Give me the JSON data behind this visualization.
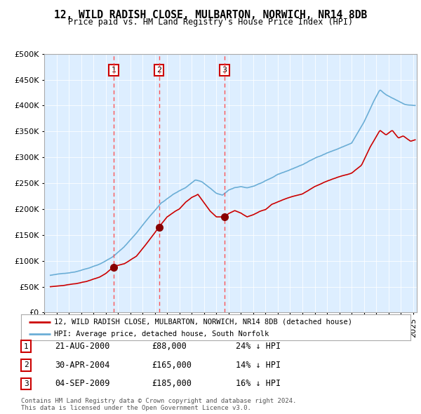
{
  "title": "12, WILD RADISH CLOSE, MULBARTON, NORWICH, NR14 8DB",
  "subtitle": "Price paid vs. HM Land Registry's House Price Index (HPI)",
  "legend_line1": "12, WILD RADISH CLOSE, MULBARTON, NORWICH, NR14 8DB (detached house)",
  "legend_line2": "HPI: Average price, detached house, South Norfolk",
  "footer1": "Contains HM Land Registry data © Crown copyright and database right 2024.",
  "footer2": "This data is licensed under the Open Government Licence v3.0.",
  "transactions": [
    {
      "num": 1,
      "date": "21-AUG-2000",
      "price": 88000,
      "note": "24% ↓ HPI"
    },
    {
      "num": 2,
      "date": "30-APR-2004",
      "price": 165000,
      "note": "14% ↓ HPI"
    },
    {
      "num": 3,
      "date": "04-SEP-2009",
      "price": 185000,
      "note": "16% ↓ HPI"
    }
  ],
  "transaction_dates_decimal": [
    2000.64,
    2004.33,
    2009.67
  ],
  "transaction_prices": [
    88000,
    165000,
    185000
  ],
  "hpi_color": "#6baed6",
  "price_color": "#cc0000",
  "dashed_line_color": "#ff4444",
  "background_color": "#ddeeff",
  "ylim": [
    0,
    500000
  ],
  "yticks": [
    0,
    50000,
    100000,
    150000,
    200000,
    250000,
    300000,
    350000,
    400000,
    450000,
    500000
  ],
  "xstart": 1995.5,
  "xend": 2025.3,
  "hpi_waypoints": [
    [
      1995.5,
      72000
    ],
    [
      1996.5,
      75000
    ],
    [
      1997.5,
      79000
    ],
    [
      1998.5,
      86000
    ],
    [
      1999.5,
      95000
    ],
    [
      2000.5,
      108000
    ],
    [
      2001.5,
      128000
    ],
    [
      2002.5,
      155000
    ],
    [
      2003.5,
      185000
    ],
    [
      2004.5,
      213000
    ],
    [
      2005.5,
      230000
    ],
    [
      2006.5,
      243000
    ],
    [
      2007.3,
      258000
    ],
    [
      2007.8,
      255000
    ],
    [
      2008.5,
      242000
    ],
    [
      2009.0,
      232000
    ],
    [
      2009.5,
      228000
    ],
    [
      2010.0,
      238000
    ],
    [
      2010.5,
      242000
    ],
    [
      2011.0,
      244000
    ],
    [
      2011.5,
      242000
    ],
    [
      2012.0,
      245000
    ],
    [
      2012.5,
      250000
    ],
    [
      2013.0,
      255000
    ],
    [
      2013.5,
      260000
    ],
    [
      2014.0,
      267000
    ],
    [
      2015.0,
      276000
    ],
    [
      2016.0,
      286000
    ],
    [
      2017.0,
      298000
    ],
    [
      2018.0,
      309000
    ],
    [
      2019.0,
      318000
    ],
    [
      2020.0,
      328000
    ],
    [
      2021.0,
      368000
    ],
    [
      2021.8,
      408000
    ],
    [
      2022.3,
      430000
    ],
    [
      2022.8,
      420000
    ],
    [
      2023.2,
      415000
    ],
    [
      2023.8,
      408000
    ],
    [
      2024.3,
      402000
    ],
    [
      2025.0,
      400000
    ],
    [
      2025.2,
      400000
    ]
  ],
  "price_waypoints": [
    [
      1995.5,
      50000
    ],
    [
      1996.5,
      52000
    ],
    [
      1997.5,
      55000
    ],
    [
      1998.5,
      60000
    ],
    [
      1999.5,
      68000
    ],
    [
      2000.0,
      75000
    ],
    [
      2000.64,
      88000
    ],
    [
      2001.5,
      93000
    ],
    [
      2002.5,
      108000
    ],
    [
      2003.5,
      138000
    ],
    [
      2004.33,
      165000
    ],
    [
      2005.0,
      185000
    ],
    [
      2005.5,
      193000
    ],
    [
      2006.0,
      200000
    ],
    [
      2006.5,
      213000
    ],
    [
      2007.0,
      222000
    ],
    [
      2007.5,
      228000
    ],
    [
      2008.0,
      212000
    ],
    [
      2008.5,
      196000
    ],
    [
      2009.0,
      185000
    ],
    [
      2009.67,
      185000
    ],
    [
      2010.0,
      192000
    ],
    [
      2010.5,
      198000
    ],
    [
      2011.0,
      193000
    ],
    [
      2011.5,
      186000
    ],
    [
      2012.0,
      190000
    ],
    [
      2012.5,
      196000
    ],
    [
      2013.0,
      200000
    ],
    [
      2013.5,
      210000
    ],
    [
      2014.0,
      215000
    ],
    [
      2015.0,
      224000
    ],
    [
      2016.0,
      230000
    ],
    [
      2017.0,
      244000
    ],
    [
      2018.0,
      254000
    ],
    [
      2019.0,
      263000
    ],
    [
      2020.0,
      270000
    ],
    [
      2020.8,
      285000
    ],
    [
      2021.5,
      320000
    ],
    [
      2022.3,
      353000
    ],
    [
      2022.8,
      344000
    ],
    [
      2023.3,
      353000
    ],
    [
      2023.8,
      338000
    ],
    [
      2024.2,
      342000
    ],
    [
      2024.8,
      332000
    ],
    [
      2025.2,
      335000
    ]
  ]
}
